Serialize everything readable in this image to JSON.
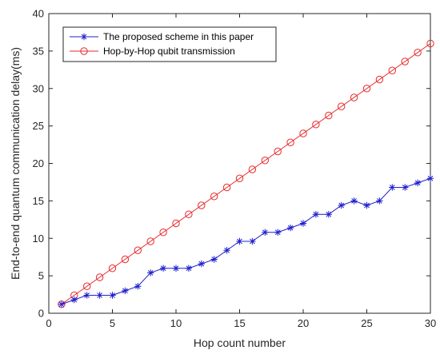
{
  "chart_data": {
    "type": "line",
    "title": "",
    "xlabel": "Hop count number",
    "ylabel": "End-to-end quantum communication delay(ms)",
    "xlim": [
      0,
      30
    ],
    "ylim": [
      0,
      40
    ],
    "xticks": [
      0,
      5,
      10,
      15,
      20,
      25,
      30
    ],
    "yticks": [
      0,
      5,
      10,
      15,
      20,
      25,
      30,
      35,
      40
    ],
    "grid": false,
    "legend_position": "top-left",
    "x": [
      1,
      2,
      3,
      4,
      5,
      6,
      7,
      8,
      9,
      10,
      11,
      12,
      13,
      14,
      15,
      16,
      17,
      18,
      19,
      20,
      21,
      22,
      23,
      24,
      25,
      26,
      27,
      28,
      29,
      30
    ],
    "series": [
      {
        "name": "The proposed scheme in this paper",
        "color": "#1f1fcf",
        "marker": "asterisk",
        "values": [
          1.2,
          1.8,
          2.4,
          2.4,
          2.4,
          3.0,
          3.6,
          5.4,
          6.0,
          6.0,
          6.0,
          6.6,
          7.2,
          8.4,
          9.6,
          9.6,
          10.8,
          10.8,
          11.4,
          12.0,
          13.2,
          13.2,
          14.4,
          15.0,
          14.4,
          15.0,
          16.8,
          16.8,
          17.4,
          18.0
        ]
      },
      {
        "name": "Hop-by-Hop qubit transmission",
        "color": "#e8292b",
        "marker": "circle",
        "values": [
          1.2,
          2.4,
          3.6,
          4.8,
          6.0,
          7.2,
          8.4,
          9.6,
          10.8,
          12.0,
          13.2,
          14.4,
          15.6,
          16.8,
          18.0,
          19.2,
          20.4,
          21.6,
          22.8,
          24.0,
          25.2,
          26.4,
          27.6,
          28.8,
          30.0,
          31.2,
          32.4,
          33.6,
          34.8,
          36.0
        ]
      }
    ]
  }
}
